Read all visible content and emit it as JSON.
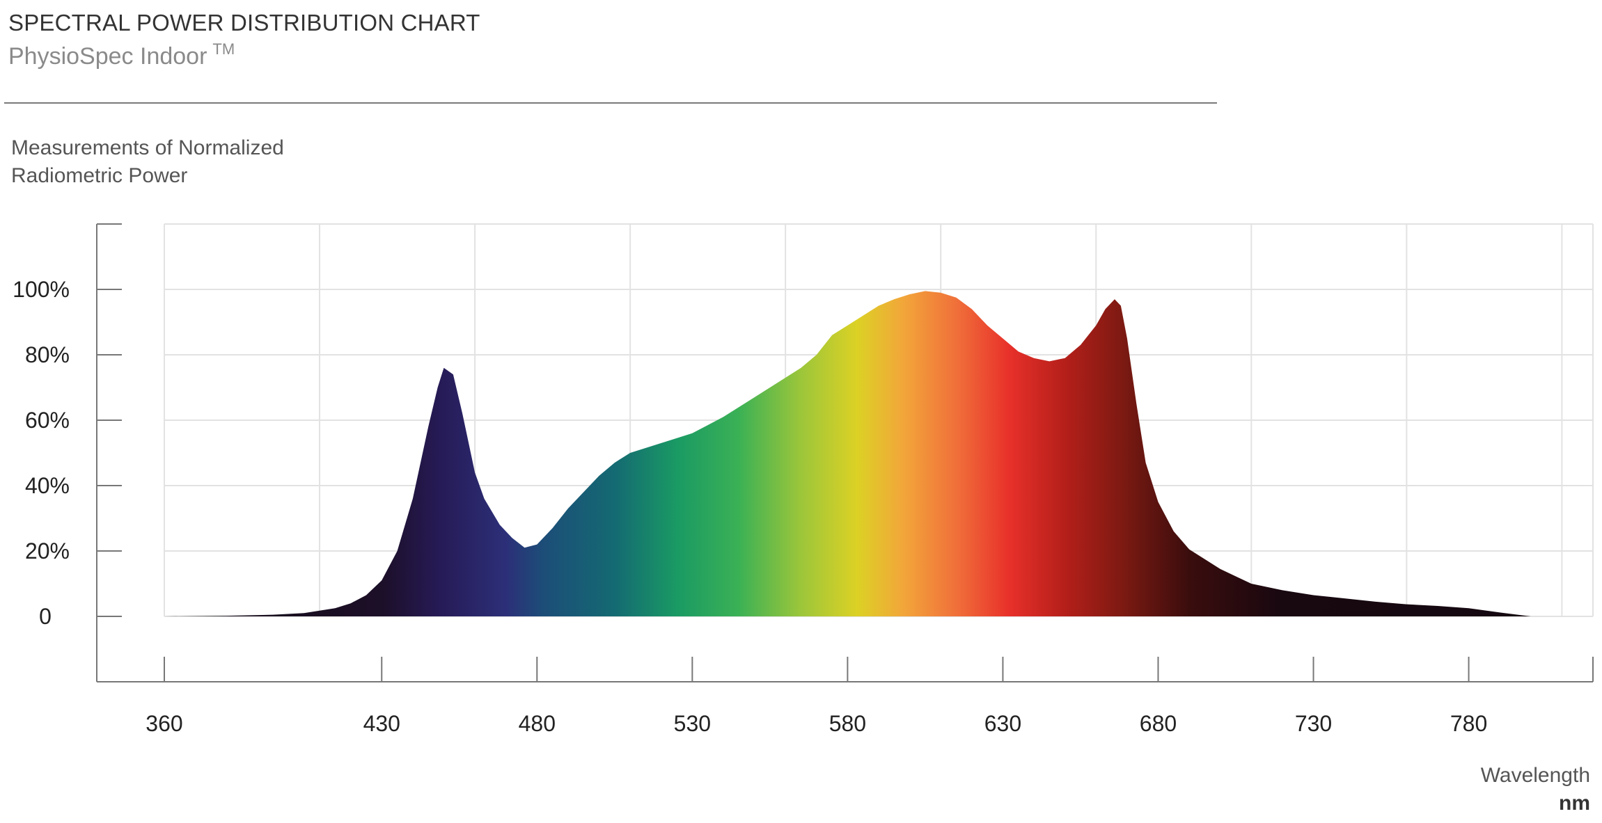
{
  "header": {
    "title": "SPECTRAL POWER DISTRIBUTION CHART",
    "product": "PhysioSpec Indoor",
    "trademark": "TM"
  },
  "y_axis": {
    "label_line1": "Measurements of Normalized",
    "label_line2": "Radiometric Power"
  },
  "x_axis": {
    "label": "Wavelength",
    "unit": "nm"
  },
  "chart_data": {
    "type": "area",
    "title": "SPECTRAL POWER DISTRIBUTION CHART",
    "subtitle": "PhysioSpec Indoor TM",
    "xlabel": "Wavelength nm",
    "ylabel": "Measurements of Normalized Radiometric Power",
    "xlim": [
      360,
      820
    ],
    "ylim": [
      -20,
      120
    ],
    "x_ticks": [
      360,
      430,
      480,
      530,
      580,
      630,
      680,
      730,
      780
    ],
    "x_tick_labels": [
      "360",
      "430",
      "480",
      "530",
      "580",
      "630",
      "680",
      "730",
      "780"
    ],
    "y_ticks": [
      0,
      20,
      40,
      60,
      80,
      100
    ],
    "y_tick_labels": [
      "0",
      "20%",
      "40%",
      "60%",
      "80%",
      "100%"
    ],
    "grid": true,
    "fill": "visible-spectrum color gradient",
    "series": [
      {
        "x": [
          360,
          380,
          395,
          405,
          415,
          420,
          425,
          430,
          435,
          440,
          445,
          448,
          450,
          453,
          456,
          460,
          463,
          468,
          472,
          476,
          480,
          485,
          490,
          495,
          500,
          505,
          510,
          520,
          530,
          540,
          550,
          560,
          565,
          570,
          575,
          580,
          585,
          590,
          595,
          600,
          605,
          610,
          615,
          620,
          625,
          630,
          635,
          640,
          645,
          650,
          655,
          660,
          663,
          666,
          668,
          670,
          673,
          676,
          680,
          685,
          690,
          700,
          710,
          720,
          730,
          740,
          750,
          760,
          770,
          780,
          790,
          800
        ],
        "y": [
          0,
          0.2,
          0.5,
          1,
          2.5,
          4,
          6.5,
          11,
          20,
          36,
          58,
          70,
          76,
          74,
          62,
          44,
          36,
          28,
          24,
          21,
          22,
          27,
          33,
          38,
          43,
          47,
          50,
          53,
          56,
          61,
          67,
          73,
          76,
          80,
          86,
          89,
          92,
          95,
          97,
          98.5,
          99.5,
          99,
          97.5,
          94,
          89,
          85,
          81,
          79,
          78,
          79,
          83,
          89,
          94,
          97,
          95,
          85,
          65,
          47,
          35,
          26,
          20.5,
          14.5,
          10,
          8,
          6.5,
          5.5,
          4.5,
          3.7,
          3.2,
          2.5,
          1.2,
          0
        ]
      }
    ]
  }
}
